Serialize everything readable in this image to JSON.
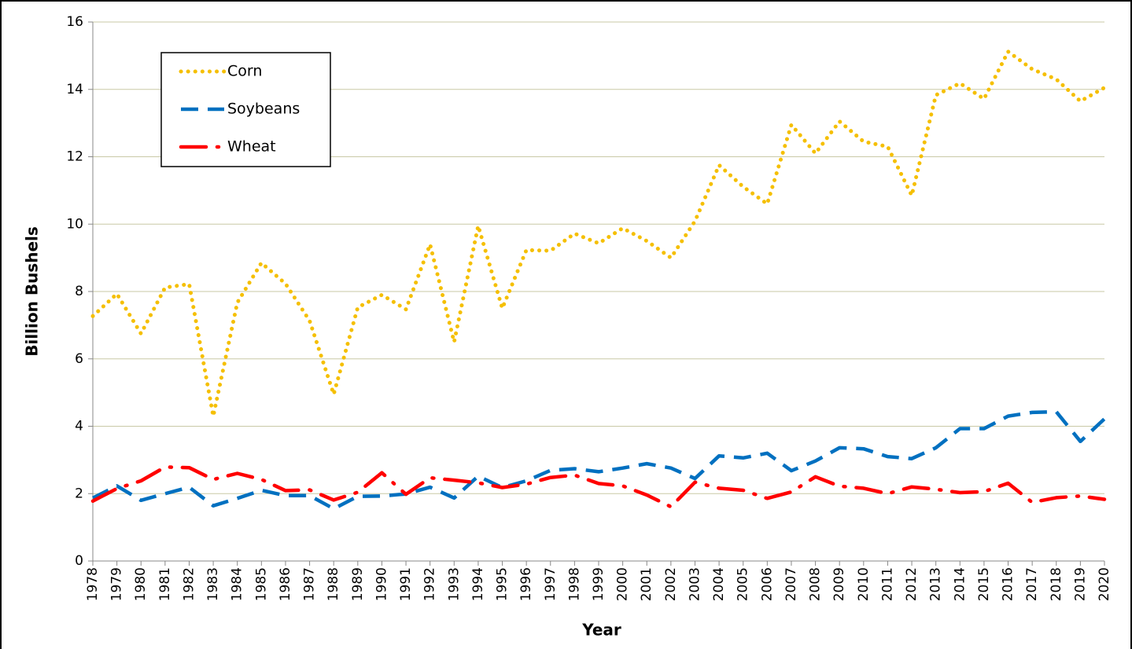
{
  "chart_data": {
    "type": "line",
    "x_label": "Year",
    "y_label": "Billion Bushels",
    "categories": [
      "1978",
      "1979",
      "1980",
      "1981",
      "1982",
      "1983",
      "1984",
      "1985",
      "1986",
      "1987",
      "1988",
      "1989",
      "1990",
      "1991",
      "1992",
      "1993",
      "1994",
      "1995",
      "1996",
      "1997",
      "1998",
      "1999",
      "2000",
      "2001",
      "2002",
      "2003",
      "2004",
      "2005",
      "2006",
      "2007",
      "2008",
      "2009",
      "2010",
      "2011",
      "2012",
      "2013",
      "2014",
      "2015",
      "2016",
      "2017",
      "2018",
      "2019",
      "2020"
    ],
    "series": [
      {
        "name": "Corn",
        "color": "#f5bf00",
        "dash": "dotted",
        "values": [
          7.27,
          7.93,
          6.75,
          8.12,
          8.22,
          4.3,
          7.67,
          8.85,
          8.23,
          7.13,
          4.95,
          7.53,
          7.9,
          7.47,
          9.4,
          6.5,
          9.95,
          7.5,
          9.23,
          9.21,
          9.72,
          9.43,
          9.88,
          9.5,
          9.0,
          10.09,
          11.75,
          11.11,
          10.6,
          12.95,
          12.1,
          13.05,
          12.45,
          12.3,
          10.85,
          13.83,
          14.18,
          13.72,
          15.12,
          14.6,
          14.3,
          13.65,
          14.05
        ]
      },
      {
        "name": "Soybeans",
        "color": "#0070c0",
        "dash": "dashed",
        "values": [
          1.87,
          2.23,
          1.8,
          2.0,
          2.19,
          1.64,
          1.86,
          2.1,
          1.94,
          1.94,
          1.55,
          1.92,
          1.93,
          1.99,
          2.19,
          1.87,
          2.52,
          2.18,
          2.38,
          2.69,
          2.74,
          2.65,
          2.76,
          2.89,
          2.76,
          2.45,
          3.12,
          3.06,
          3.2,
          2.68,
          2.97,
          3.36,
          3.33,
          3.1,
          3.04,
          3.36,
          3.93,
          3.93,
          4.3,
          4.41,
          4.43,
          3.55,
          4.22
        ]
      },
      {
        "name": "Wheat",
        "color": "#ff0000",
        "dash": "dashdot",
        "values": [
          1.78,
          2.15,
          2.38,
          2.79,
          2.77,
          2.42,
          2.6,
          2.42,
          2.09,
          2.11,
          1.81,
          2.04,
          2.62,
          1.98,
          2.47,
          2.4,
          2.32,
          2.18,
          2.28,
          2.48,
          2.55,
          2.3,
          2.23,
          1.96,
          1.61,
          2.34,
          2.16,
          2.1,
          1.86,
          2.05,
          2.5,
          2.22,
          2.16,
          2.0,
          2.2,
          2.13,
          2.03,
          2.06,
          2.31,
          1.74,
          1.88,
          1.93,
          1.83
        ]
      }
    ],
    "ylim": [
      0,
      16
    ],
    "yticks": [
      0,
      2,
      4,
      6,
      8,
      10,
      12,
      14,
      16
    ],
    "grid": true,
    "legend": "upper left"
  }
}
